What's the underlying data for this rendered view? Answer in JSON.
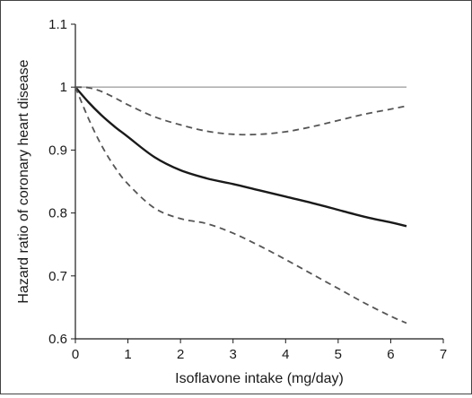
{
  "chart_data": {
    "type": "line",
    "title": "",
    "xlabel": "Isoflavone intake (mg/day)",
    "ylabel": "Hazard ratio of coronary heart disease",
    "xlim": [
      0,
      7
    ],
    "ylim": [
      0.6,
      1.1
    ],
    "xticks": [
      0,
      1,
      2,
      3,
      4,
      5,
      6,
      7
    ],
    "yticks": [
      0.6,
      0.7,
      0.8,
      0.9,
      1,
      1.1
    ],
    "xtick_labels": [
      "0",
      "1",
      "2",
      "3",
      "4",
      "5",
      "6",
      "7"
    ],
    "ytick_labels": [
      "0.6",
      "0.7",
      "0.8",
      "0.9",
      "1",
      "1.1"
    ],
    "grid": false,
    "legend": "none",
    "reference_line": {
      "y": 1.0,
      "color": "#b0b0b0"
    },
    "series": [
      {
        "style": "solid",
        "color": "#1a1a1a",
        "x": [
          0,
          0.25,
          0.5,
          0.75,
          1,
          1.5,
          2,
          2.5,
          3,
          3.5,
          4,
          4.5,
          5,
          5.5,
          6,
          6.3
        ],
        "y": [
          1.0,
          0.976,
          0.955,
          0.937,
          0.921,
          0.889,
          0.868,
          0.855,
          0.846,
          0.836,
          0.826,
          0.816,
          0.805,
          0.794,
          0.785,
          0.779
        ]
      },
      {
        "style": "dashed",
        "color": "#555555",
        "x": [
          0,
          0.25,
          0.5,
          0.75,
          1,
          1.5,
          2,
          2.5,
          3,
          3.5,
          4,
          4.5,
          5,
          5.5,
          6,
          6.3
        ],
        "y": [
          1.0,
          0.999,
          0.993,
          0.983,
          0.972,
          0.953,
          0.94,
          0.93,
          0.925,
          0.925,
          0.929,
          0.937,
          0.947,
          0.957,
          0.965,
          0.97
        ]
      },
      {
        "style": "dashed",
        "color": "#555555",
        "x": [
          0,
          0.25,
          0.5,
          0.75,
          1,
          1.5,
          2,
          2.5,
          3,
          3.5,
          4,
          4.5,
          5,
          5.5,
          6,
          6.3
        ],
        "y": [
          1.0,
          0.95,
          0.907,
          0.873,
          0.846,
          0.808,
          0.791,
          0.783,
          0.768,
          0.748,
          0.726,
          0.703,
          0.68,
          0.657,
          0.636,
          0.625
        ]
      }
    ]
  }
}
